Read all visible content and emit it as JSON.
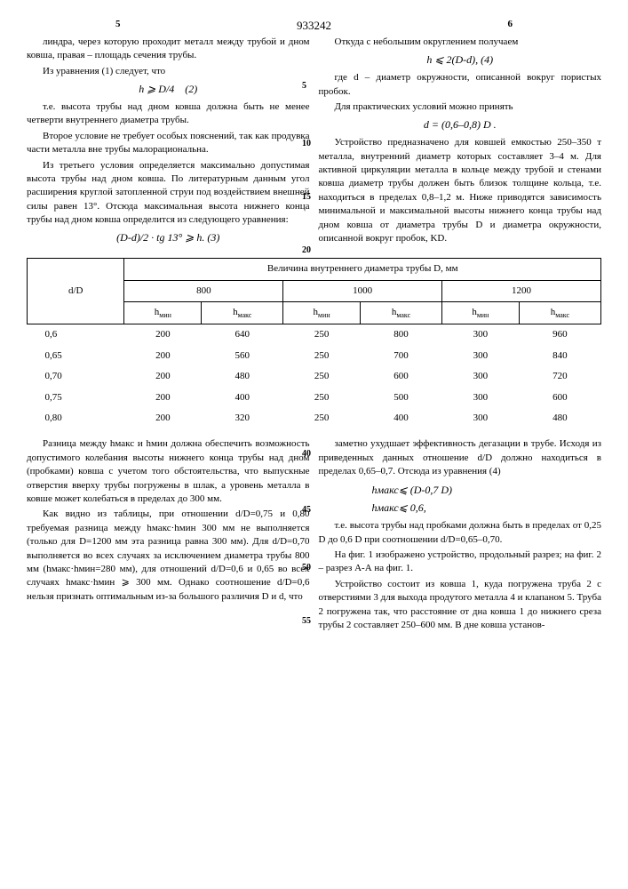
{
  "header": {
    "page_left": "5",
    "page_right": "6",
    "doc_id": "933242"
  },
  "line_nums": [
    "5",
    "10",
    "15",
    "20",
    "40",
    "45",
    "50",
    "55"
  ],
  "left_col_top": {
    "p1": "линдра, через которую проходит металл между трубой и дном ковша, правая – площадь сечения трубы.",
    "p2": "Из уравнения (1) следует, что",
    "f1": "h ⩾ D/4    (2)",
    "p3": "т.е. высота трубы над дном ковша должна быть не менее четверти внутреннего диаметра трубы.",
    "p4": "Второе условие не требует особых пояснений, так как продувка части металла вне трубы малорациональна.",
    "p5": "Из третьего условия определяется максимально допустимая высота трубы над дном ковша. По литературным данным угол расширения круглой затопленной струи под воздействием внешней силы равен 13°. Отсюда максимальная высота нижнего конца трубы над дном ковша определится из следующего уравнения:",
    "f2": "(D-d)/2 · tg 13° ⩾ h. (3)"
  },
  "right_col_top": {
    "p1": "Откуда с небольшим округлением получаем",
    "f1": "h ⩽ 2(D-d), (4)",
    "p2": "где d – диаметр окружности, описанной вокруг пористых пробок.",
    "p3": "Для практических условий можно принять",
    "f2": "d = (0,6–0,8) D .",
    "p4": "Устройство предназначено для ковшей емкостью 250–350 т металла, внутренний диаметр которых составляет 3–4 м. Для активной циркуляции металла в кольце между трубой и стенами ковша диаметр трубы должен быть близок толщине кольца, т.е. находиться в пределах 0,8–1,2 м. Ниже приводятся зависимость минимальной и максимальной высоты нижнего конца трубы над дном ковша от диаметра трубы D и диаметра окружности, описанной вокруг пробок, KD."
  },
  "table": {
    "col_header_title": "Величина внутреннего диаметра трубы D, мм",
    "row_header": "d/D",
    "diameters": [
      "800",
      "1000",
      "1200"
    ],
    "sub_headers": [
      "hмин",
      "hмакс"
    ],
    "rows": [
      {
        "label": "0,6",
        "cells": [
          "200",
          "640",
          "250",
          "800",
          "300",
          "960"
        ]
      },
      {
        "label": "0,65",
        "cells": [
          "200",
          "560",
          "250",
          "700",
          "300",
          "840"
        ]
      },
      {
        "label": "0,70",
        "cells": [
          "200",
          "480",
          "250",
          "600",
          "300",
          "720"
        ]
      },
      {
        "label": "0,75",
        "cells": [
          "200",
          "400",
          "250",
          "500",
          "300",
          "600"
        ]
      },
      {
        "label": "0,80",
        "cells": [
          "200",
          "320",
          "250",
          "400",
          "300",
          "480"
        ]
      }
    ]
  },
  "left_col_bot": {
    "p1": "Разница между hмакс и hмин должна обеспечить возможность допустимого колебания высоты нижнего конца трубы над дном (пробками) ковша с учетом того обстоятельства, что выпускные отверстия вверху трубы погружены в шлак, а уровень металла в ковше может колебаться в пределах до 300 мм.",
    "p2": "Как видно из таблицы, при отношении d/D=0,75 и 0,80 требуемая разница между hмакс·hмин 300 мм не выполняется (только для D=1200 мм эта разница равна 300 мм). Для d/D=0,70 выполняется во всех случаях за исключением диаметра трубы 800 мм (hмакс·hмин=280 мм), для отношений d/D=0,6 и 0,65 во всех случаях hмакс·hмин ⩾ 300 мм. Однако соотношение d/D=0,6 нельзя признать оптимальным из-за большого различия D и d, что"
  },
  "right_col_bot": {
    "p1": "заметно ухудшает эффективность дегазации в трубе. Исходя из приведенных данных отношение d/D должно находиться в пределах 0,65–0,7. Отсюда из уравнения (4)",
    "f1": "hмакс⩽ (D-0,7 D)",
    "f2": "hмакс⩽ 0,6,",
    "p2": "т.е. высота трубы над пробками должна быть в пределах от 0,25 D до 0,6 D при соотношении d/D=0,65–0,70.",
    "p3": "На фиг. 1 изображено устройство, продольный разрез; на фиг. 2 – разрез А-А на фиг. 1.",
    "p4": "Устройство состоит из ковша 1, куда погружена труба 2 с отверстиями 3 для выхода продутого металла 4 и клапаном 5. Труба 2 погружена так, что расстояние от дна ковша 1 до нижнего среза трубы 2 составляет 250–600 мм. В дне ковша установ-"
  }
}
